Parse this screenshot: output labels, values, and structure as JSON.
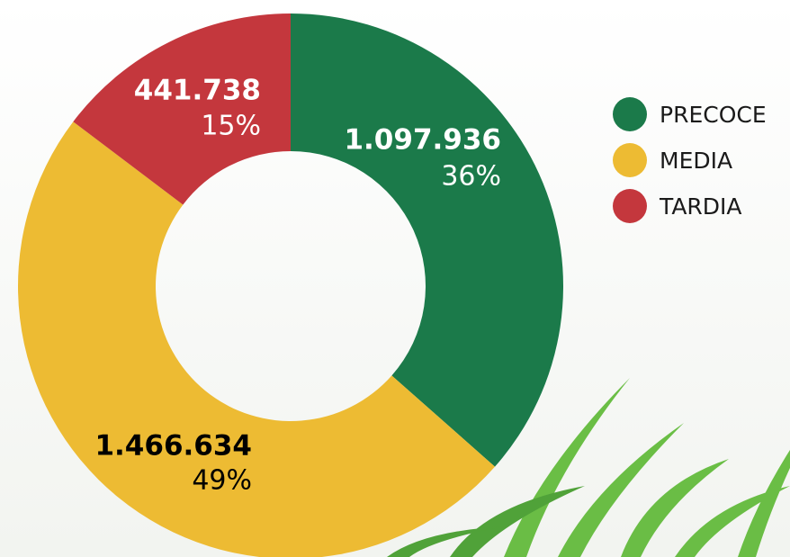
{
  "chart_data": {
    "type": "donut",
    "categories": [
      "PRECOCE",
      "MEDIA",
      "TARDIA"
    ],
    "values": [
      1097936,
      1466634,
      441738
    ],
    "value_labels": [
      "1.097.936",
      "1.466.634",
      "441.738"
    ],
    "percentages": [
      36,
      49,
      15
    ],
    "percentage_labels": [
      "36%",
      "49%",
      "15%"
    ],
    "colors": [
      "#1b7a4a",
      "#edbb33",
      "#c4373d"
    ],
    "legend": "right"
  }
}
